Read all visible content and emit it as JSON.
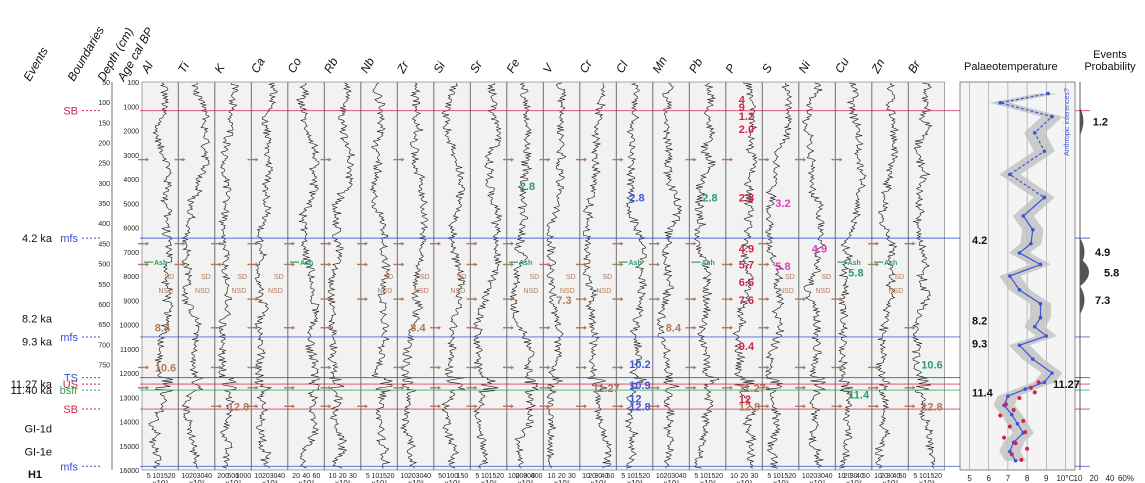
{
  "chart_data": {
    "type": "line",
    "headers": {
      "events": "Events",
      "boundaries": "Boundaries",
      "depth": "Depth (cm)",
      "age": "Age cal BP",
      "palaeo": "Palaeotemperature",
      "events_prob": "Events",
      "events_prob2": "Probability",
      "bottom_left": "H1"
    },
    "depth_ticks": [
      "50",
      "100",
      "150",
      "200",
      "250",
      "300",
      "350",
      "400",
      "450",
      "500",
      "550",
      "600",
      "650",
      "700",
      "750"
    ],
    "age_ticks": [
      "100",
      "1000",
      "2000",
      "3000",
      "4000",
      "5000",
      "6000",
      "7000",
      "8000",
      "9000",
      "10000",
      "11000",
      "12000",
      "13000",
      "14000",
      "15000",
      "16000"
    ],
    "events": [
      {
        "label": "4.2 ka",
        "depth": 388
      },
      {
        "label": "8.2 ka",
        "depth": 562
      },
      {
        "label": "9.3 ka",
        "depth": 612
      },
      {
        "label": "11.27 ka",
        "depth": 704
      },
      {
        "label": "11.40 ka",
        "depth": 717
      },
      {
        "label": "GI-1d",
        "depth": 800
      },
      {
        "label": "GI-1e",
        "depth": 850
      }
    ],
    "boundaries": [
      {
        "label": "SB",
        "depth": 112,
        "color": "#d6224b"
      },
      {
        "label": "mfs",
        "depth": 388,
        "color": "#3a4fd0"
      },
      {
        "label": "mfs",
        "depth": 602,
        "color": "#3a4fd0"
      },
      {
        "label": "TS",
        "depth": 690,
        "color": "#3a4fd0"
      },
      {
        "label": "US",
        "depth": 704,
        "color": "#d6224b"
      },
      {
        "label": "bsfr",
        "depth": 717,
        "color": "#2fa04f"
      },
      {
        "label": "SB",
        "depth": 758,
        "color": "#d6224b"
      },
      {
        "label": "mfs",
        "depth": 882,
        "color": "#3a4fd0"
      }
    ],
    "elements": [
      {
        "name": "Al",
        "ticks": [
          "5",
          "10",
          "15",
          "20"
        ],
        "unit": "x10²"
      },
      {
        "name": "Ti",
        "ticks": [
          "10",
          "20",
          "30",
          "40"
        ],
        "unit": "x10²"
      },
      {
        "name": "K",
        "ticks": [
          "200",
          "600",
          "1000"
        ],
        "unit": "x10²"
      },
      {
        "name": "Ca",
        "ticks": [
          "10",
          "20",
          "30",
          "40"
        ],
        "unit": "x10³"
      },
      {
        "name": "Co",
        "ticks": [
          "20",
          "40",
          "60"
        ],
        "unit": "x10²"
      },
      {
        "name": "Rb",
        "ticks": [
          "10",
          "20",
          "30"
        ],
        "unit": "x10²"
      },
      {
        "name": "Nb",
        "ticks": [
          "5",
          "10",
          "15",
          "20"
        ],
        "unit": "x10²"
      },
      {
        "name": "Zr",
        "ticks": [
          "10",
          "20",
          "30",
          "40"
        ],
        "unit": "x10²"
      },
      {
        "name": "Si",
        "ticks": [
          "50",
          "100",
          "150"
        ],
        "unit": "x10²"
      },
      {
        "name": "Sr",
        "ticks": [
          "5",
          "10",
          "15",
          "20"
        ],
        "unit": "x10²"
      },
      {
        "name": "Fe",
        "ticks": [
          "100",
          "200",
          "300",
          "400"
        ],
        "unit": "x10²"
      },
      {
        "name": "V",
        "ticks": [
          "10",
          "20",
          "30"
        ],
        "unit": "x10²"
      },
      {
        "name": "Cr",
        "ticks": [
          "10",
          "20",
          "30",
          "40",
          "50"
        ],
        "unit": "x10²"
      },
      {
        "name": "Cl",
        "ticks": [
          "5",
          "10",
          "15",
          "20"
        ],
        "unit": "x10³"
      },
      {
        "name": "Mn",
        "ticks": [
          "10",
          "20",
          "30",
          "40"
        ],
        "unit": "x10²"
      },
      {
        "name": "Pb",
        "ticks": [
          "5",
          "10",
          "15",
          "20"
        ],
        "unit": "x10²"
      },
      {
        "name": "P",
        "ticks": [
          "10",
          "20",
          "30"
        ],
        "unit": "x10²"
      },
      {
        "name": "S",
        "ticks": [
          "5",
          "10",
          "15",
          "20"
        ],
        "unit": "x10³"
      },
      {
        "name": "Ni",
        "ticks": [
          "10",
          "20",
          "30",
          "40"
        ],
        "unit": "x10²"
      },
      {
        "name": "Cu",
        "ticks": [
          "10",
          "20",
          "30",
          "40",
          "50"
        ],
        "unit": "x10²"
      },
      {
        "name": "Zn",
        "ticks": [
          "10",
          "20",
          "30",
          "40",
          "50"
        ],
        "unit": "x10²"
      },
      {
        "name": "Br",
        "ticks": [
          "5",
          "10",
          "15",
          "20"
        ],
        "unit": "x10³"
      }
    ],
    "annotations": [
      {
        "col": "Fe",
        "text": "2.8",
        "depth": 275,
        "color": "#2a9d6a"
      },
      {
        "col": "Pb",
        "text": "2.8",
        "depth": 300,
        "color": "#2a9d6a"
      },
      {
        "col": "Cl",
        "text": "2.8",
        "depth": 300,
        "color": "#3b5bd6"
      },
      {
        "col": "P",
        "text": "4",
        "depth": 88,
        "color": "#d6224b"
      },
      {
        "col": "P",
        "text": "9",
        "depth": 104,
        "color": "#d6224b"
      },
      {
        "col": "P",
        "text": "1.2",
        "depth": 124,
        "color": "#d6224b"
      },
      {
        "col": "P",
        "text": "2.0",
        "depth": 152,
        "color": "#d6224b"
      },
      {
        "col": "P",
        "text": "2.8",
        "depth": 300,
        "color": "#d6224b"
      },
      {
        "col": "P",
        "text": "4.9",
        "depth": 410,
        "color": "#d6224b"
      },
      {
        "col": "P",
        "text": "5.7",
        "depth": 445,
        "color": "#d6224b"
      },
      {
        "col": "P",
        "text": "6.6",
        "depth": 483,
        "color": "#d6224b"
      },
      {
        "col": "P",
        "text": "7.6",
        "depth": 522,
        "color": "#d6224b"
      },
      {
        "col": "P",
        "text": "9.4",
        "depth": 622,
        "color": "#d6224b"
      },
      {
        "col": "P",
        "text": "11.27",
        "depth": 712,
        "color": "#b07a5a"
      },
      {
        "col": "P",
        "text": "12",
        "depth": 736,
        "color": "#d6224b"
      },
      {
        "col": "P",
        "text": "12.8",
        "depth": 752,
        "color": "#b07a5a"
      },
      {
        "col": "S",
        "text": "3.2",
        "depth": 312,
        "color": "#d63fc0"
      },
      {
        "col": "S",
        "text": "5.8",
        "depth": 448,
        "color": "#d63fc0"
      },
      {
        "col": "Ni",
        "text": "4.9",
        "depth": 410,
        "color": "#d63fc0"
      },
      {
        "col": "Cu",
        "text": "5.8",
        "depth": 462,
        "color": "#2a9d6a"
      },
      {
        "col": "Cu",
        "text": "11.4",
        "depth": 727,
        "color": "#2a9d6a"
      },
      {
        "col": "Br",
        "text": "10.6",
        "depth": 662,
        "color": "#2a9d6a"
      },
      {
        "col": "Br",
        "text": "12.8",
        "depth": 752,
        "color": "#b07a5a"
      },
      {
        "col": "Al",
        "text": "8.4",
        "depth": 582,
        "color": "#b07a5a"
      },
      {
        "col": "Al",
        "text": "10.6",
        "depth": 668,
        "color": "#b07a5a"
      },
      {
        "col": "K",
        "text": "12.8",
        "depth": 752,
        "color": "#b07a5a"
      },
      {
        "col": "Zr",
        "text": "8.4",
        "depth": 582,
        "color": "#b07a5a"
      },
      {
        "col": "V",
        "text": "7.3",
        "depth": 522,
        "color": "#b07a5a"
      },
      {
        "col": "Cr",
        "text": "11.27",
        "depth": 712,
        "color": "#b07a5a"
      },
      {
        "col": "Mn",
        "text": "8.4",
        "depth": 582,
        "color": "#b07a5a"
      },
      {
        "col": "Cl",
        "text": "10.2",
        "depth": 660,
        "color": "#3b5bd6"
      },
      {
        "col": "Cl",
        "text": "10.9",
        "depth": 706,
        "color": "#3b5bd6"
      },
      {
        "col": "Cl",
        "text": "12",
        "depth": 735,
        "color": "#3b5bd6"
      },
      {
        "col": "Cl",
        "text": "12.8",
        "depth": 752,
        "color": "#3b5bd6"
      }
    ],
    "ash_label": "Ash",
    "sd_label": "SD",
    "nsd_label": "NSD",
    "palaeotemperature": {
      "xticks": [
        "5",
        "6",
        "7",
        "8",
        "9",
        "10°C"
      ],
      "xlim": [
        4.5,
        10.5
      ],
      "series": [
        {
          "name": "interpolated",
          "depth": [
            75,
            95,
            125,
            160,
            200,
            250,
            300
          ],
          "temp": [
            9.1,
            6.6,
            9.3,
            8.4,
            8.9,
            7.1,
            8.9
          ]
        },
        {
          "name": "measured",
          "depth": [
            300,
            340,
            370,
            400,
            420,
            445,
            470,
            500,
            530,
            560,
            580,
            600,
            620,
            650,
            680,
            700,
            715,
            730,
            750,
            770,
            790,
            810,
            830,
            850,
            870
          ],
          "temp": [
            8.9,
            7.8,
            8.3,
            8.2,
            7.6,
            8.7,
            7.1,
            7.6,
            8.7,
            8.7,
            8.4,
            9.0,
            7.6,
            8.3,
            9.3,
            8.9,
            7.9,
            7.0,
            6.8,
            7.2,
            7.5,
            7.8,
            7.3,
            7.1,
            7.4
          ]
        }
      ],
      "red_points": [
        [
          8.6,
          700
        ],
        [
          8.2,
          712
        ],
        [
          8.4,
          722
        ],
        [
          7.6,
          734
        ],
        [
          6.9,
          748
        ],
        [
          7.3,
          760
        ],
        [
          6.6,
          772
        ],
        [
          7.8,
          784
        ],
        [
          7.1,
          796
        ],
        [
          7.9,
          808
        ],
        [
          6.8,
          820
        ],
        [
          7.4,
          832
        ],
        [
          8.0,
          844
        ],
        [
          7.2,
          856
        ],
        [
          7.7,
          868
        ]
      ],
      "labels": [
        {
          "text": "4.2",
          "depth": 392
        },
        {
          "text": "8.2",
          "depth": 566
        },
        {
          "text": "9.3",
          "depth": 616
        },
        {
          "text": "11.4",
          "depth": 722
        },
        {
          "text": "11.27",
          "depth": 704
        }
      ],
      "inset_label": "Anthropic inferences?"
    },
    "event_probability": {
      "xticks": [
        "10",
        "20",
        "40",
        "60%"
      ],
      "peaks": [
        {
          "label": "1.2",
          "depth": 135,
          "value": 15
        },
        {
          "label": "4.9",
          "depth": 418,
          "value": 20
        },
        {
          "label": "5.8",
          "depth": 462,
          "value": 40
        },
        {
          "label": "7.3",
          "depth": 522,
          "value": 20
        }
      ]
    }
  }
}
